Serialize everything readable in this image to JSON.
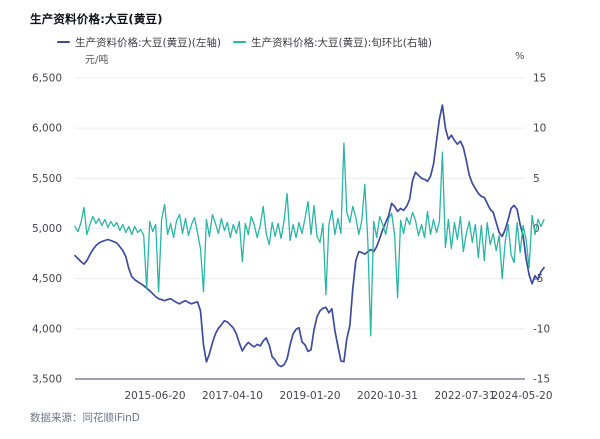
{
  "header": {
    "title": "生产资料价格:大豆(黄豆)"
  },
  "legend": {
    "items": [
      {
        "label": "生产资料价格:大豆(黄豆)(左轴)",
        "color": "#3d4c9e"
      },
      {
        "label": "生产资料价格:大豆(黄豆):旬环比(右轴)",
        "color": "#2ab5a5"
      }
    ]
  },
  "footer": {
    "source": "数据来源：同花顺iFinD"
  },
  "colors": {
    "grid_line": "#ececf2",
    "axis_line": "#9aa1b6",
    "tick_text": "#45464e"
  },
  "chart_data": {
    "type": "line",
    "title": "生产资料价格:大豆(黄豆)",
    "grid": true,
    "legend_position": "top",
    "x_axis": {
      "tick_labels": [
        "2015-06-20",
        "2017-04-10",
        "2019-01-20",
        "2020-10-31",
        "2022-07-31",
        "2024-05-20"
      ],
      "tick_positions": [
        0.1706,
        0.3358,
        0.5011,
        0.6663,
        0.8316,
        0.9531
      ]
    },
    "y_axis_left": {
      "unit": "元/吨",
      "min": 3500,
      "max": 6500,
      "tick_values": [
        6500,
        6000,
        5500,
        5000,
        4500,
        4000,
        3500
      ],
      "tick_labels": [
        "6,500",
        "6,000",
        "5,500",
        "5,000",
        "4,500",
        "4,000",
        "3,500"
      ]
    },
    "y_axis_right": {
      "unit": "%",
      "min": -15,
      "max": 15,
      "tick_values": [
        15,
        10,
        5,
        0,
        -5,
        -10,
        -15
      ],
      "tick_labels": [
        "15",
        "10",
        "5",
        "0",
        "-5",
        "-10",
        "-15"
      ]
    },
    "series": [
      {
        "name": "生产资料价格:大豆(黄豆)(左轴)",
        "axis": "left",
        "color": "#3d4c9e",
        "stroke_width": 1.7,
        "values": [
          4730,
          4700,
          4670,
          4645,
          4680,
          4740,
          4790,
          4830,
          4855,
          4870,
          4880,
          4890,
          4880,
          4868,
          4855,
          4820,
          4780,
          4720,
          4600,
          4520,
          4490,
          4470,
          4450,
          4430,
          4405,
          4380,
          4350,
          4320,
          4300,
          4290,
          4280,
          4292,
          4300,
          4280,
          4262,
          4250,
          4268,
          4280,
          4262,
          4250,
          4260,
          4268,
          4180,
          3840,
          3670,
          3750,
          3860,
          3950,
          4005,
          4040,
          4080,
          4068,
          4040,
          4008,
          3950,
          3860,
          3780,
          3830,
          3865,
          3840,
          3820,
          3845,
          3830,
          3880,
          3910,
          3840,
          3720,
          3690,
          3640,
          3625,
          3642,
          3700,
          3840,
          3950,
          3995,
          4010,
          3870,
          3840,
          3775,
          3790,
          3990,
          4120,
          4180,
          4205,
          4215,
          4160,
          4200,
          3980,
          3830,
          3680,
          3672,
          3900,
          4030,
          4400,
          4680,
          4770,
          4760,
          4745,
          4770,
          4790,
          4770,
          4820,
          4900,
          4990,
          5060,
          5130,
          5250,
          5220,
          5170,
          5200,
          5180,
          5220,
          5290,
          5480,
          5560,
          5530,
          5500,
          5490,
          5470,
          5520,
          5640,
          5870,
          6090,
          6230,
          6000,
          5890,
          5930,
          5880,
          5840,
          5870,
          5810,
          5680,
          5530,
          5450,
          5400,
          5350,
          5320,
          5310,
          5250,
          5190,
          5160,
          5060,
          4960,
          4920,
          4990,
          5090,
          5200,
          5230,
          5190,
          5040,
          4930,
          4700,
          4540,
          4450,
          4530,
          4490,
          4570,
          4610
        ]
      },
      {
        "name": "生产资料价格:大豆(黄豆):旬环比(右轴)",
        "axis": "right",
        "color": "#2ab5a5",
        "stroke_width": 1.3,
        "values": [
          0.2,
          -0.3,
          0.6,
          2.1,
          -0.6,
          0.4,
          1.2,
          0.5,
          1.0,
          0.3,
          0.9,
          0.1,
          0.7,
          0.2,
          0.6,
          -0.2,
          0.4,
          -0.4,
          0.2,
          -0.6,
          0.2,
          -0.4,
          -0.1,
          -0.7,
          -6.0,
          0.7,
          -0.3,
          0.4,
          -6.3,
          0.9,
          2.4,
          -0.6,
          0.5,
          -0.9,
          0.8,
          1.4,
          -0.5,
          1.0,
          -0.7,
          0.4,
          1.1,
          -0.4,
          -2.0,
          -6.3,
          0.9,
          -0.8,
          1.4,
          0.5,
          -0.5,
          1.0,
          -0.2,
          0.6,
          -0.9,
          0.4,
          -0.5,
          0.7,
          -3.3,
          0.5,
          -0.6,
          1.2,
          0.4,
          -0.9,
          0.3,
          2.2,
          -0.5,
          -1.6,
          0.6,
          -0.8,
          0.5,
          -1.0,
          0.8,
          3.5,
          -1.2,
          0.4,
          -0.9,
          0.6,
          -0.5,
          1.0,
          2.7,
          -0.6,
          2.3,
          -0.8,
          -1.4,
          0.5,
          -6.6,
          0.4,
          1.8,
          -0.6,
          1.0,
          -0.5,
          8.5,
          1.6,
          0.6,
          2.2,
          1.1,
          -0.6,
          0.8,
          4.4,
          -1.2,
          -10.7,
          0.7,
          -0.9,
          1.2,
          0.4,
          -0.6,
          1.0,
          1.5,
          -0.6,
          -6.9,
          0.8,
          -0.5,
          1.1,
          0.4,
          1.6,
          0.8,
          -0.7,
          0.4,
          -0.9,
          1.7,
          -0.6,
          0.9,
          -0.4,
          0.7,
          7.6,
          -1.9,
          0.9,
          -2.0,
          0.6,
          -1.1,
          1.2,
          -2.3,
          -0.5,
          0.7,
          -1.4,
          0.4,
          -2.9,
          0.3,
          -3.2,
          0.6,
          -1.6,
          -0.5,
          -2.2,
          -0.7,
          -5.0,
          -1.3,
          0.4,
          -2.6,
          -3.4,
          0.6,
          -2.4,
          0.3,
          -1.1,
          -3.9,
          1.3,
          -0.6,
          0.9,
          0.2,
          0.9
        ]
      }
    ]
  }
}
